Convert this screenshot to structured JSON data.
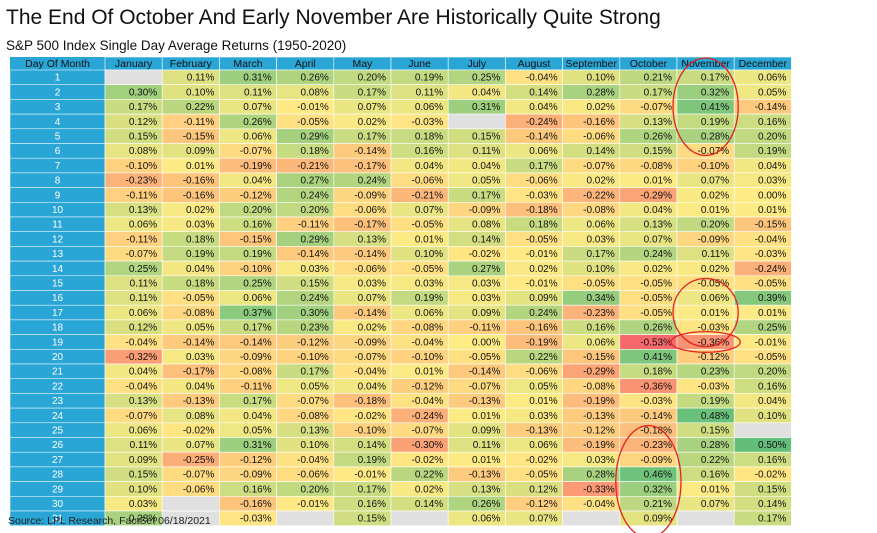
{
  "title": "The End Of October And Early November Are Historically Quite Strong",
  "subtitle": "S&P 500 Index Single Day Average Returns (1950-2020)",
  "source": "Source: LPL Research, FactSet 06/18/2021",
  "chart_data": {
    "type": "heatmap",
    "corner_label": "Day Of Month",
    "columns": [
      "January",
      "February",
      "March",
      "April",
      "May",
      "June",
      "July",
      "August",
      "September",
      "October",
      "November",
      "December"
    ],
    "rows": [
      1,
      2,
      3,
      4,
      5,
      6,
      7,
      8,
      9,
      10,
      11,
      12,
      13,
      14,
      15,
      16,
      17,
      18,
      19,
      20,
      21,
      22,
      23,
      24,
      25,
      26,
      27,
      28,
      29,
      30,
      31
    ],
    "value_unit": "%",
    "values": [
      [
        null,
        0.11,
        0.31,
        0.26,
        0.2,
        0.19,
        0.25,
        -0.04,
        0.1,
        0.21,
        0.17,
        0.06
      ],
      [
        0.3,
        0.1,
        0.11,
        0.08,
        0.17,
        0.11,
        0.04,
        0.14,
        0.28,
        0.17,
        0.32,
        0.05
      ],
      [
        0.17,
        0.22,
        0.07,
        -0.01,
        0.07,
        0.06,
        0.31,
        0.04,
        0.02,
        -0.07,
        0.41,
        -0.14
      ],
      [
        0.12,
        -0.11,
        0.26,
        -0.05,
        0.02,
        -0.03,
        null,
        -0.24,
        -0.16,
        0.13,
        0.19,
        0.16
      ],
      [
        0.15,
        -0.15,
        0.06,
        0.29,
        0.17,
        0.18,
        0.15,
        -0.14,
        -0.06,
        0.26,
        0.28,
        0.2
      ],
      [
        0.08,
        0.09,
        -0.07,
        0.18,
        -0.14,
        0.16,
        0.11,
        0.06,
        0.14,
        0.15,
        -0.07,
        0.19
      ],
      [
        -0.1,
        0.01,
        -0.19,
        -0.21,
        -0.17,
        0.04,
        0.04,
        0.17,
        -0.07,
        -0.08,
        -0.1,
        0.04
      ],
      [
        -0.23,
        -0.16,
        0.04,
        0.27,
        0.24,
        -0.06,
        0.05,
        -0.06,
        0.02,
        0.01,
        0.07,
        0.03
      ],
      [
        -0.11,
        -0.16,
        -0.12,
        0.24,
        -0.09,
        -0.21,
        0.17,
        -0.03,
        -0.22,
        -0.29,
        0.02,
        0.0
      ],
      [
        0.13,
        0.02,
        0.2,
        0.2,
        -0.06,
        0.07,
        -0.09,
        -0.18,
        -0.08,
        0.04,
        0.01,
        0.01
      ],
      [
        0.06,
        0.03,
        0.16,
        -0.11,
        -0.17,
        -0.05,
        0.08,
        0.18,
        0.06,
        0.13,
        0.2,
        -0.15
      ],
      [
        -0.11,
        0.18,
        -0.15,
        0.29,
        0.13,
        0.01,
        0.14,
        -0.05,
        0.03,
        0.07,
        -0.09,
        -0.04
      ],
      [
        -0.07,
        0.19,
        0.19,
        -0.14,
        -0.14,
        0.1,
        -0.02,
        -0.01,
        0.17,
        0.24,
        0.11,
        -0.03
      ],
      [
        0.25,
        0.04,
        -0.1,
        0.03,
        -0.06,
        -0.05,
        0.27,
        0.02,
        0.1,
        0.02,
        0.02,
        -0.24
      ],
      [
        0.11,
        0.18,
        0.25,
        0.15,
        0.03,
        0.03,
        0.03,
        -0.01,
        -0.05,
        -0.05,
        -0.05,
        -0.05
      ],
      [
        0.11,
        -0.05,
        0.06,
        0.24,
        0.07,
        0.19,
        0.03,
        0.09,
        0.34,
        -0.05,
        0.06,
        0.39
      ],
      [
        0.06,
        -0.08,
        0.37,
        0.3,
        -0.14,
        0.06,
        0.09,
        0.24,
        -0.23,
        -0.05,
        0.01,
        0.01
      ],
      [
        0.12,
        0.05,
        0.17,
        0.23,
        0.02,
        -0.08,
        -0.11,
        -0.16,
        0.16,
        0.26,
        -0.03,
        0.25
      ],
      [
        -0.04,
        -0.14,
        -0.14,
        -0.12,
        -0.09,
        -0.04,
        0.0,
        -0.19,
        0.06,
        -0.53,
        -0.36,
        -0.01
      ],
      [
        -0.32,
        0.03,
        -0.09,
        -0.1,
        -0.07,
        -0.1,
        -0.05,
        0.22,
        -0.15,
        0.41,
        -0.12,
        -0.05
      ],
      [
        0.04,
        -0.17,
        -0.08,
        0.17,
        -0.04,
        0.01,
        -0.14,
        -0.06,
        -0.29,
        0.18,
        0.23,
        0.2
      ],
      [
        -0.04,
        0.04,
        -0.11,
        0.05,
        0.04,
        -0.12,
        -0.07,
        0.05,
        -0.08,
        -0.36,
        -0.03,
        0.16
      ],
      [
        0.13,
        -0.13,
        0.17,
        -0.07,
        -0.18,
        -0.04,
        -0.13,
        0.01,
        -0.19,
        -0.03,
        0.19,
        0.04
      ],
      [
        -0.07,
        0.08,
        0.04,
        -0.08,
        -0.02,
        -0.24,
        0.01,
        0.03,
        -0.13,
        -0.14,
        0.48,
        0.1
      ],
      [
        0.06,
        -0.02,
        0.05,
        0.13,
        -0.1,
        -0.07,
        0.09,
        -0.13,
        -0.12,
        -0.18,
        0.15,
        null
      ],
      [
        0.11,
        0.07,
        0.31,
        0.1,
        0.14,
        -0.3,
        0.11,
        0.06,
        -0.19,
        -0.23,
        0.28,
        0.5
      ],
      [
        0.09,
        -0.25,
        -0.12,
        -0.04,
        0.19,
        -0.02,
        0.01,
        -0.02,
        0.03,
        -0.09,
        0.22,
        0.16
      ],
      [
        0.15,
        -0.07,
        -0.09,
        -0.06,
        -0.01,
        0.22,
        -0.13,
        -0.05,
        0.28,
        0.46,
        0.16,
        -0.02
      ],
      [
        0.1,
        -0.06,
        0.16,
        0.2,
        0.17,
        0.02,
        0.13,
        0.12,
        -0.33,
        0.32,
        0.01,
        0.15
      ],
      [
        0.03,
        null,
        -0.16,
        -0.01,
        0.16,
        0.14,
        0.26,
        -0.12,
        -0.04,
        0.21,
        0.07,
        0.14
      ],
      [
        0.28,
        null,
        -0.03,
        null,
        0.15,
        null,
        0.06,
        0.07,
        null,
        0.09,
        null,
        0.17
      ]
    ],
    "highlights": [
      {
        "label": "October days 26-31",
        "column": "October",
        "rows": [
          26,
          31
        ]
      },
      {
        "label": "November days 1-5",
        "column": "November",
        "rows": [
          1,
          5
        ]
      },
      {
        "label": "November days 16-18",
        "column": "November",
        "rows": [
          16,
          18
        ]
      },
      {
        "label": "November day 19",
        "column": "November",
        "rows": [
          19,
          19
        ]
      }
    ],
    "colors": {
      "header_bg": "#2aa6d6",
      "day_bg": "#2aa6d6",
      "empty_bg": "#e0e0e0",
      "highlight": "#e32222",
      "positive_max": "#63be7b",
      "neutral": "#ffeb84",
      "negative_max": "#f8696b",
      "grid": "#ffffff"
    }
  }
}
